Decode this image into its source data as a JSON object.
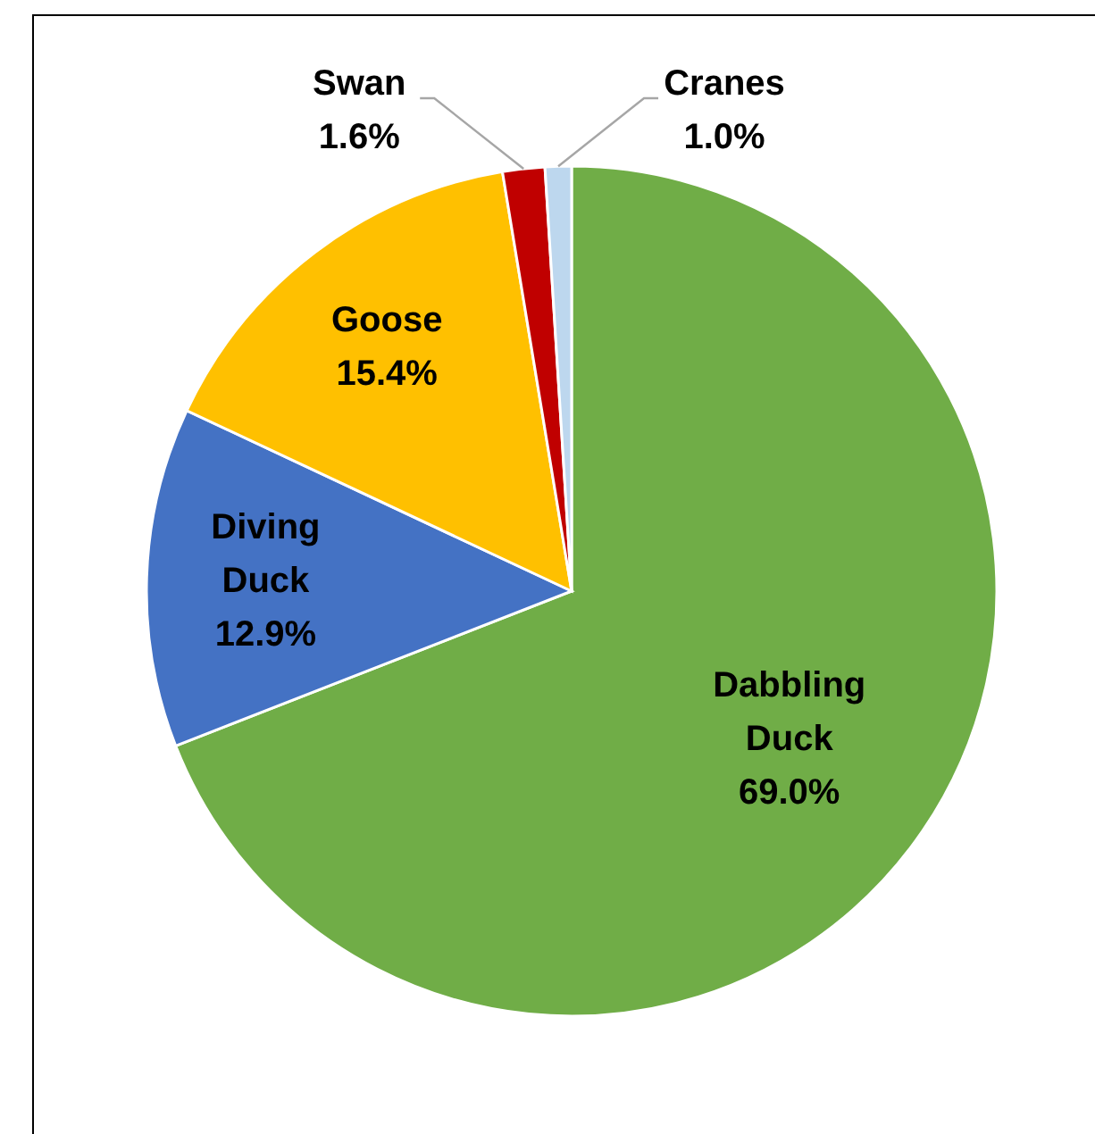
{
  "chart_data": {
    "type": "pie",
    "categories": [
      "Dabbling Duck",
      "Diving Duck",
      "Goose",
      "Swan",
      "Cranes"
    ],
    "values": [
      69.0,
      12.9,
      15.4,
      1.6,
      1.0
    ],
    "colors": [
      "#70ad47",
      "#4472c4",
      "#ffc000",
      "#c00000",
      "#bdd7ee"
    ],
    "value_labels": [
      "69.0%",
      "12.9%",
      "15.4%",
      "1.6%",
      "1.0%"
    ],
    "legend": false
  }
}
